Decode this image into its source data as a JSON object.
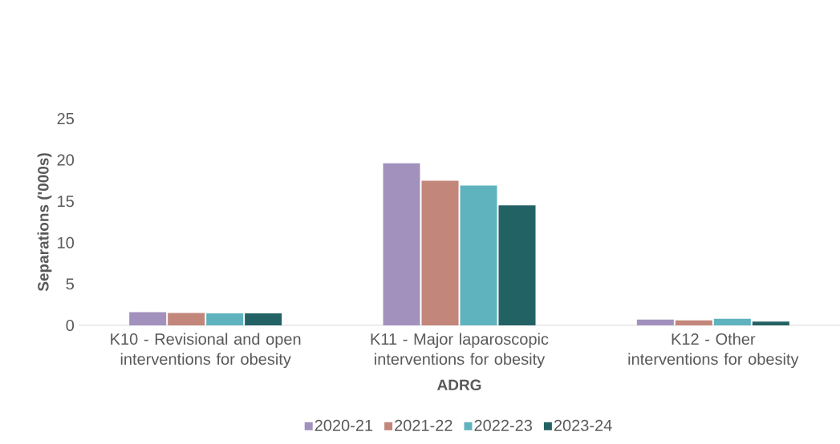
{
  "chart_data": {
    "type": "bar",
    "xlabel": "ADRG",
    "ylabel": "Separations ('000s)",
    "categories": [
      "K10 - Revisional and open interventions for obesity",
      "K11 - Major laparoscopic interventions for obesity",
      "K12 - Other interventions for obesity"
    ],
    "series": [
      {
        "name": "2020-21",
        "color": "#a291bd",
        "values": [
          1.6,
          19.6,
          0.7
        ]
      },
      {
        "name": "2021-22",
        "color": "#c2867a",
        "values": [
          1.5,
          17.5,
          0.6
        ]
      },
      {
        "name": "2022-23",
        "color": "#5fb3be",
        "values": [
          1.45,
          16.9,
          0.8
        ]
      },
      {
        "name": "2023-24",
        "color": "#236264",
        "values": [
          1.45,
          14.5,
          0.45
        ]
      }
    ],
    "ylim": [
      0,
      25
    ],
    "yticks": [
      0,
      5,
      10,
      15,
      20,
      25
    ],
    "legend": "bottom"
  }
}
